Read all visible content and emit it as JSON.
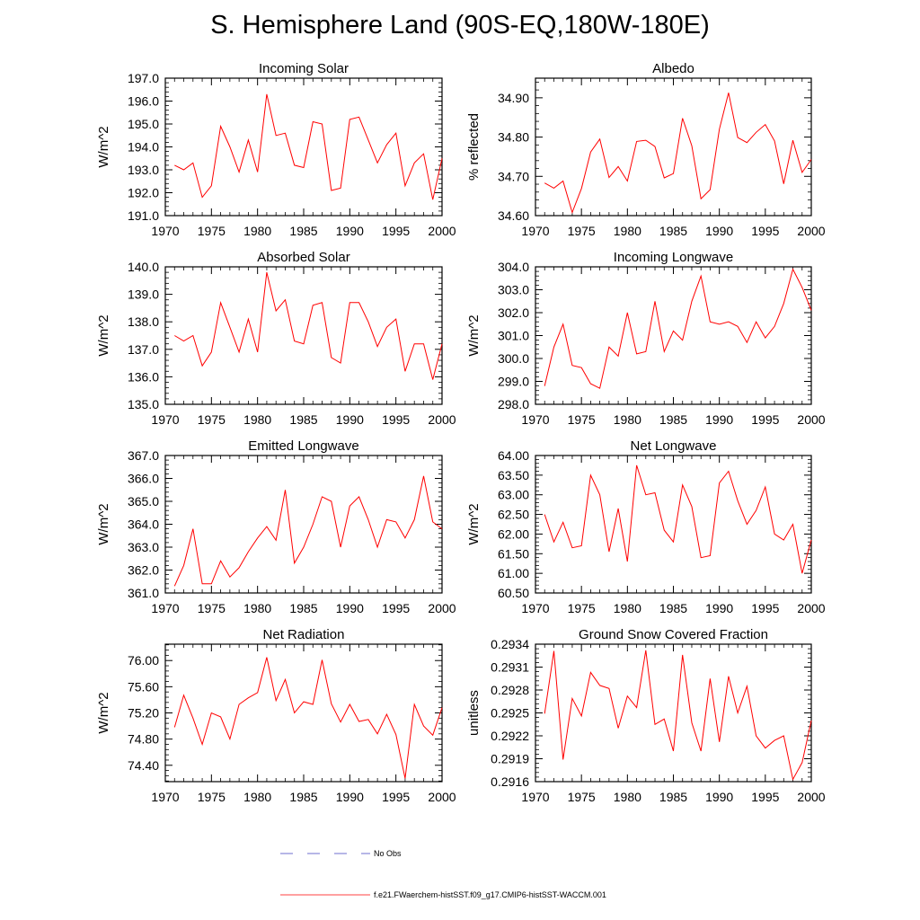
{
  "page_title": "S. Hemisphere Land (90S-EQ,180W-180E)",
  "legend": {
    "entries": [
      {
        "label": "No Obs",
        "color": "#4040c0",
        "dash": true
      },
      {
        "label": "f.e21.FWaerchem-histSST.f09_g17.CMIP6-histSST-WACCM.001",
        "color": "#ff0000",
        "dash": false
      }
    ]
  },
  "chart_data": [
    {
      "type": "line",
      "title": "Incoming Solar",
      "ylabel": "W/m^2",
      "xlim": [
        1970,
        2000
      ],
      "ylim": [
        191.0,
        197.0
      ],
      "yticks": [
        "191.0",
        "192.0",
        "193.0",
        "194.0",
        "195.0",
        "196.0",
        "197.0"
      ],
      "xticks": [
        "1970",
        "1975",
        "1980",
        "1985",
        "1990",
        "1995",
        "2000"
      ],
      "series": [
        {
          "color": "#ff0000",
          "x": [
            1971,
            1972,
            1973,
            1974,
            1975,
            1976,
            1977,
            1978,
            1979,
            1980,
            1981,
            1982,
            1983,
            1984,
            1985,
            1986,
            1987,
            1988,
            1989,
            1990,
            1991,
            1992,
            1993,
            1994,
            1995,
            1996,
            1997,
            1998,
            1999,
            2000
          ],
          "values": [
            193.2,
            193.0,
            193.3,
            191.8,
            192.3,
            194.9,
            194.0,
            192.9,
            194.3,
            192.9,
            196.3,
            194.5,
            194.6,
            193.2,
            193.1,
            195.1,
            195.0,
            192.1,
            192.2,
            195.2,
            195.3,
            194.3,
            193.3,
            194.1,
            194.6,
            192.3,
            193.3,
            193.7,
            191.7,
            193.5
          ]
        }
      ]
    },
    {
      "type": "line",
      "title": "Albedo",
      "ylabel": "% reflected",
      "xlim": [
        1970,
        2000
      ],
      "ylim": [
        34.6,
        34.95
      ],
      "yticks": [
        "34.60",
        "34.70",
        "34.80",
        "34.90"
      ],
      "xticks": [
        "1970",
        "1975",
        "1980",
        "1985",
        "1990",
        "1995",
        "2000"
      ],
      "series": [
        {
          "color": "#ff0000",
          "x": [
            1971,
            1972,
            1973,
            1974,
            1975,
            1976,
            1977,
            1978,
            1979,
            1980,
            1981,
            1982,
            1983,
            1984,
            1985,
            1986,
            1987,
            1988,
            1989,
            1990,
            1991,
            1992,
            1993,
            1994,
            1995,
            1996,
            1997,
            1998,
            1999,
            2000
          ],
          "values": [
            34.683,
            34.67,
            34.688,
            34.608,
            34.669,
            34.762,
            34.795,
            34.697,
            34.725,
            34.688,
            34.789,
            34.792,
            34.776,
            34.696,
            34.707,
            34.848,
            34.778,
            34.643,
            34.666,
            34.82,
            34.913,
            34.799,
            34.786,
            34.812,
            34.832,
            34.79,
            34.681,
            34.792,
            34.71,
            34.743
          ]
        }
      ]
    },
    {
      "type": "line",
      "title": "Absorbed Solar",
      "ylabel": "W/m^2",
      "xlim": [
        1970,
        2000
      ],
      "ylim": [
        135.0,
        140.0
      ],
      "yticks": [
        "135.0",
        "136.0",
        "137.0",
        "138.0",
        "139.0",
        "140.0"
      ],
      "xticks": [
        "1970",
        "1975",
        "1980",
        "1985",
        "1990",
        "1995",
        "2000"
      ],
      "series": [
        {
          "color": "#ff0000",
          "x": [
            1971,
            1972,
            1973,
            1974,
            1975,
            1976,
            1977,
            1978,
            1979,
            1980,
            1981,
            1982,
            1983,
            1984,
            1985,
            1986,
            1987,
            1988,
            1989,
            1990,
            1991,
            1992,
            1993,
            1994,
            1995,
            1996,
            1997,
            1998,
            1999,
            2000
          ],
          "values": [
            137.5,
            137.3,
            137.5,
            136.4,
            136.9,
            138.7,
            137.8,
            136.9,
            138.1,
            136.9,
            139.8,
            138.4,
            138.8,
            137.3,
            137.2,
            138.6,
            138.7,
            136.7,
            136.5,
            138.7,
            138.7,
            138.0,
            137.1,
            137.8,
            138.1,
            136.2,
            137.2,
            137.2,
            135.9,
            137.2
          ]
        }
      ]
    },
    {
      "type": "line",
      "title": "Incoming Longwave",
      "ylabel": "W/m^2",
      "xlim": [
        1970,
        2000
      ],
      "ylim": [
        298.0,
        304.0
      ],
      "yticks": [
        "298.0",
        "299.0",
        "300.0",
        "301.0",
        "302.0",
        "303.0",
        "304.0"
      ],
      "xticks": [
        "1970",
        "1975",
        "1980",
        "1985",
        "1990",
        "1995",
        "2000"
      ],
      "series": [
        {
          "color": "#ff0000",
          "x": [
            1971,
            1972,
            1973,
            1974,
            1975,
            1976,
            1977,
            1978,
            1979,
            1980,
            1981,
            1982,
            1983,
            1984,
            1985,
            1986,
            1987,
            1988,
            1989,
            1990,
            1991,
            1992,
            1993,
            1994,
            1995,
            1996,
            1997,
            1998,
            1999,
            2000
          ],
          "values": [
            298.8,
            300.5,
            301.5,
            299.7,
            299.6,
            298.9,
            298.7,
            300.5,
            300.1,
            302.0,
            300.2,
            300.3,
            302.5,
            300.3,
            301.2,
            300.8,
            302.5,
            303.6,
            301.6,
            301.5,
            301.6,
            301.4,
            300.7,
            301.6,
            300.9,
            301.4,
            302.4,
            303.9,
            303.1,
            302.1
          ]
        }
      ]
    },
    {
      "type": "line",
      "title": "Emitted Longwave",
      "ylabel": "W/m^2",
      "xlim": [
        1970,
        2000
      ],
      "ylim": [
        361.0,
        367.0
      ],
      "yticks": [
        "361.0",
        "362.0",
        "363.0",
        "364.0",
        "365.0",
        "366.0",
        "367.0"
      ],
      "xticks": [
        "1970",
        "1975",
        "1980",
        "1985",
        "1990",
        "1995",
        "2000"
      ],
      "series": [
        {
          "color": "#ff0000",
          "x": [
            1971,
            1972,
            1973,
            1974,
            1975,
            1976,
            1977,
            1978,
            1979,
            1980,
            1981,
            1982,
            1983,
            1984,
            1985,
            1986,
            1987,
            1988,
            1989,
            1990,
            1991,
            1992,
            1993,
            1994,
            1995,
            1996,
            1997,
            1998,
            1999,
            2000
          ],
          "values": [
            361.3,
            362.2,
            363.8,
            361.4,
            361.4,
            362.4,
            361.7,
            362.1,
            362.8,
            363.4,
            363.9,
            363.3,
            365.5,
            362.3,
            363.0,
            364.0,
            365.2,
            365.0,
            363.0,
            364.8,
            365.2,
            364.2,
            363.0,
            364.2,
            364.1,
            363.4,
            364.2,
            366.1,
            364.1,
            363.8
          ]
        }
      ]
    },
    {
      "type": "line",
      "title": "Net Longwave",
      "ylabel": "W/m^2",
      "xlim": [
        1970,
        2000
      ],
      "ylim": [
        60.5,
        64.0
      ],
      "yticks": [
        "60.50",
        "61.00",
        "61.50",
        "62.00",
        "62.50",
        "63.00",
        "63.50",
        "64.00"
      ],
      "xticks": [
        "1970",
        "1975",
        "1980",
        "1985",
        "1990",
        "1995",
        "2000"
      ],
      "series": [
        {
          "color": "#ff0000",
          "x": [
            1971,
            1972,
            1973,
            1974,
            1975,
            1976,
            1977,
            1978,
            1979,
            1980,
            1981,
            1982,
            1983,
            1984,
            1985,
            1986,
            1987,
            1988,
            1989,
            1990,
            1991,
            1992,
            1993,
            1994,
            1995,
            1996,
            1997,
            1998,
            1999,
            2000
          ],
          "values": [
            62.5,
            61.8,
            62.3,
            61.65,
            61.7,
            63.5,
            63.0,
            61.55,
            62.65,
            61.3,
            63.75,
            63.0,
            63.05,
            62.1,
            61.8,
            63.25,
            62.7,
            61.4,
            61.45,
            63.3,
            63.6,
            62.85,
            62.25,
            62.6,
            63.2,
            62.0,
            61.85,
            62.25,
            61.0,
            61.85
          ]
        }
      ]
    },
    {
      "type": "line",
      "title": "Net Radiation",
      "ylabel": "W/m^2",
      "xlim": [
        1970,
        2000
      ],
      "ylim": [
        74.15,
        76.25
      ],
      "yticks": [
        "74.40",
        "74.80",
        "75.20",
        "75.60",
        "76.00"
      ],
      "xticks": [
        "1970",
        "1975",
        "1980",
        "1985",
        "1990",
        "1995",
        "2000"
      ],
      "series": [
        {
          "color": "#ff0000",
          "x": [
            1971,
            1972,
            1973,
            1974,
            1975,
            1976,
            1977,
            1978,
            1979,
            1980,
            1981,
            1982,
            1983,
            1984,
            1985,
            1986,
            1987,
            1988,
            1989,
            1990,
            1991,
            1992,
            1993,
            1994,
            1995,
            1996,
            1997,
            1998,
            1999,
            2000
          ],
          "values": [
            74.98,
            75.47,
            75.12,
            74.72,
            75.2,
            75.14,
            74.8,
            75.33,
            75.43,
            75.51,
            76.05,
            75.39,
            75.71,
            75.2,
            75.37,
            75.33,
            76.01,
            75.34,
            75.06,
            75.33,
            75.07,
            75.1,
            74.88,
            75.18,
            74.87,
            74.2,
            75.33,
            75.0,
            74.86,
            75.28
          ]
        }
      ]
    },
    {
      "type": "line",
      "title": "Ground Snow Covered Fraction",
      "ylabel": "unitless",
      "xlim": [
        1970,
        2000
      ],
      "ylim": [
        0.2916,
        0.2934
      ],
      "yticks": [
        "0.2916",
        "0.2919",
        "0.2922",
        "0.2925",
        "0.2928",
        "0.2931",
        "0.2934"
      ],
      "xticks": [
        "1970",
        "1975",
        "1980",
        "1985",
        "1990",
        "1995",
        "2000"
      ],
      "series": [
        {
          "color": "#ff0000",
          "x": [
            1971,
            1972,
            1973,
            1974,
            1975,
            1976,
            1977,
            1978,
            1979,
            1980,
            1981,
            1982,
            1983,
            1984,
            1985,
            1986,
            1987,
            1988,
            1989,
            1990,
            1991,
            1992,
            1993,
            1994,
            1995,
            1996,
            1997,
            1998,
            1999,
            2000
          ],
          "values": [
            0.29249,
            0.29331,
            0.29189,
            0.29269,
            0.29246,
            0.29303,
            0.29286,
            0.29282,
            0.2923,
            0.29272,
            0.29257,
            0.29332,
            0.29235,
            0.29242,
            0.292,
            0.29326,
            0.29237,
            0.292,
            0.29295,
            0.29212,
            0.29298,
            0.2925,
            0.29285,
            0.2922,
            0.29204,
            0.29214,
            0.2922,
            0.29163,
            0.29185,
            0.2924
          ]
        }
      ]
    }
  ]
}
